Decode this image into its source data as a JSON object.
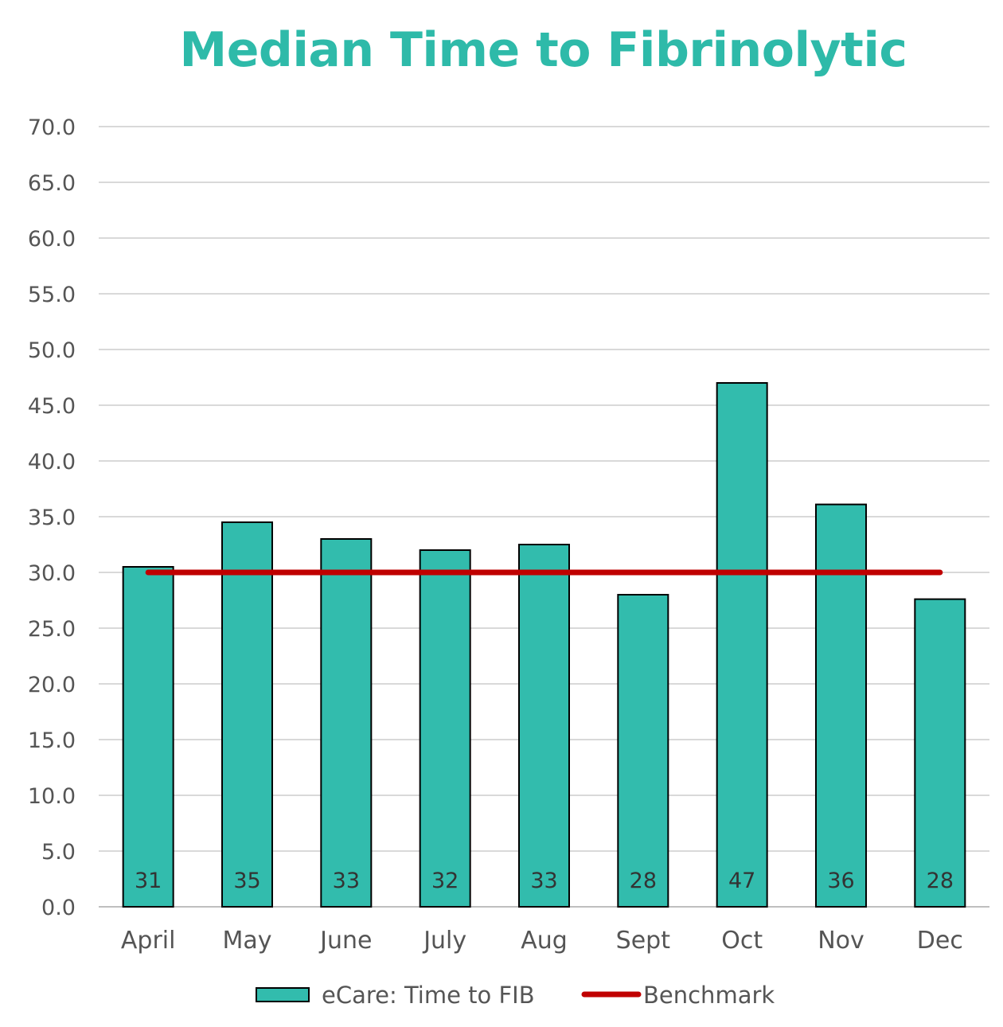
{
  "chart_data": {
    "type": "bar",
    "title": "Median Time to Fibrinolytic",
    "categories": [
      "April",
      "May",
      "June",
      "July",
      "Aug",
      "Sept",
      "Oct",
      "Nov",
      "Dec"
    ],
    "series": [
      {
        "name": "eCare: Time to FIB",
        "type": "bar",
        "values": [
          30.5,
          34.5,
          33.0,
          32.0,
          32.5,
          28.0,
          47.0,
          36.1,
          27.6
        ],
        "data_labels": [
          "31",
          "35",
          "33",
          "32",
          "33",
          "28",
          "47",
          "36",
          "28"
        ],
        "color": "#32bcad",
        "border_color": "#000000"
      },
      {
        "name": "Benchmark",
        "type": "line",
        "values": [
          30,
          30,
          30,
          30,
          30,
          30,
          30,
          30,
          30
        ],
        "color": "#c00000"
      }
    ],
    "ylim": [
      0,
      70
    ],
    "y_ticks": [
      "0.0",
      "5.0",
      "10.0",
      "15.0",
      "20.0",
      "25.0",
      "30.0",
      "35.0",
      "40.0",
      "45.0",
      "50.0",
      "55.0",
      "60.0",
      "65.0",
      "70.0"
    ],
    "xlabel": "",
    "ylabel": "",
    "grid": true,
    "legend_position": "bottom"
  },
  "colors": {
    "title": "#2ebaa9",
    "gridline": "#d9d9d9",
    "axis_text": "#555555"
  }
}
